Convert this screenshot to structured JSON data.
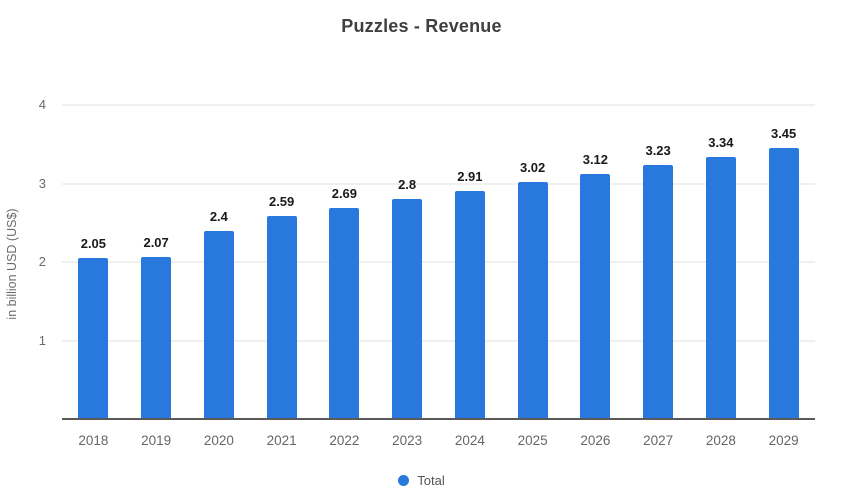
{
  "title": "Puzzles - Revenue",
  "legend": {
    "items": [
      {
        "label": "Total",
        "color": "#2878DE"
      }
    ]
  },
  "colors": {
    "bar": "#2878DE",
    "grid": "#f0f0f0",
    "axis_line": "#595959",
    "title_text": "#3f3f3f",
    "tick_text": "#6b6b6b"
  },
  "chart_data": {
    "type": "bar",
    "title": "Puzzles - Revenue",
    "xlabel": "",
    "ylabel": "in billion USD (US$)",
    "categories": [
      "2018",
      "2019",
      "2020",
      "2021",
      "2022",
      "2023",
      "2024",
      "2025",
      "2026",
      "2027",
      "2028",
      "2029"
    ],
    "values": [
      2.05,
      2.07,
      2.4,
      2.59,
      2.69,
      2.8,
      2.91,
      3.02,
      3.12,
      3.23,
      3.34,
      3.45
    ],
    "value_labels": [
      "2.05",
      "2.07",
      "2.4",
      "2.59",
      "2.69",
      "2.8",
      "2.91",
      "3.02",
      "3.12",
      "3.23",
      "3.34",
      "3.45"
    ],
    "series_name": "Total",
    "yticks": [
      1,
      2,
      3,
      4
    ],
    "ylim": [
      0,
      4
    ],
    "grid": "horizontal",
    "legend_position": "bottom-center"
  }
}
